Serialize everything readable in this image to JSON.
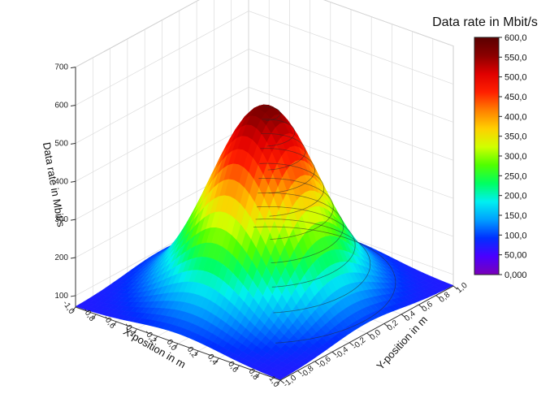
{
  "chart_data": {
    "type": "surface3d",
    "title": "",
    "xlabel": "X-position in m",
    "ylabel": "Y-position in m",
    "zlabel": "Data rate in Mbit/s",
    "xlim": [
      -1.0,
      1.0
    ],
    "ylim": [
      -1.0,
      1.0
    ],
    "zlim": [
      70,
      700
    ],
    "x_ticks": [
      "-1,0",
      "-0,8",
      "-0,6",
      "-0,4",
      "-0,2",
      "0,0",
      "0,2",
      "0,4",
      "0,6",
      "0,8",
      "1,0"
    ],
    "y_ticks": [
      "-1,0",
      "-0,8",
      "-0,6",
      "-0,4",
      "-0,2",
      "0,0",
      "0,2",
      "0,4",
      "0,6",
      "0,8",
      "1,0"
    ],
    "z_ticks": [
      100,
      200,
      300,
      400,
      500,
      600,
      700
    ],
    "peak": {
      "x": 0.0,
      "y": 0.0,
      "z": 570
    },
    "edge_value": 70,
    "contour_levels": [
      100,
      150,
      200,
      250,
      300,
      350,
      400,
      450,
      500,
      550
    ],
    "grid": true,
    "colorbar": {
      "title": "Data rate in Mbit/s",
      "position": "right",
      "min": 0,
      "max": 600,
      "labels": [
        "600,0",
        "550,0",
        "500,0",
        "450,0",
        "400,0",
        "350,0",
        "300,0",
        "250,0",
        "200,0",
        "150,0",
        "100,0",
        "50,00",
        "0,000"
      ],
      "colors": [
        "#7a00b8",
        "#4a00ff",
        "#0030ff",
        "#00a0ff",
        "#00f0f0",
        "#00ff60",
        "#50ff00",
        "#d0ff00",
        "#ffd000",
        "#ff8000",
        "#ff2000",
        "#e00000",
        "#8b0000",
        "#5a0000"
      ]
    }
  }
}
